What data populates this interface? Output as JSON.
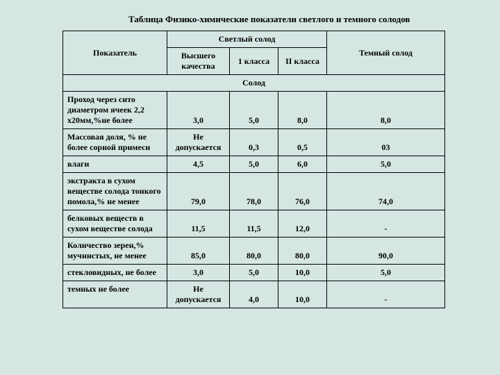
{
  "title": "Таблица Физико-химические показатели светлого и темного солодов",
  "headers": {
    "parameter": "Показатель",
    "light": "Светлый солод",
    "dark": "Темный солод",
    "sub1": "Высшего качества",
    "sub2": "1 класса",
    "sub3": "II класса"
  },
  "section": "Солод",
  "rows": [
    {
      "p": "Проход через сито диаметром ячеек 2,2 х20мм,%не более",
      "v1": "3,0",
      "v2": "5,0",
      "v3": "8,0",
      "v4": "8,0"
    },
    {
      "p": "Массовая доля, % не более\nсорной примеси",
      "v1": "Не допускается",
      "v2": "0,3",
      "v3": "0,5",
      "v4": "03"
    },
    {
      "p": "влаги",
      "v1": "4,5",
      "v2": "5,0",
      "v3": "6,0",
      "v4": "5,0"
    },
    {
      "p": "экстракта в сухом веществе солода тонкого помола,% не менее",
      "v1": "79,0",
      "v2": "78,0",
      "v3": "76,0",
      "v4": "74,0"
    },
    {
      "p": "белковых веществ в сухом веществе солода",
      "v1": "11,5",
      "v2": "11,5",
      "v3": "12,0",
      "v4": "-"
    },
    {
      "p": "Количество зерен,% мучнистых, не менее",
      "v1": "85,0",
      "v2": "80,0",
      "v3": "80,0",
      "v4": "90,0"
    },
    {
      "p": "стекловидных, не более",
      "v1": "3,0",
      "v2": "5,0",
      "v3": "10,0",
      "v4": "5,0"
    },
    {
      "p": "темных не более",
      "v1": "Не допускается",
      "v2": "4,0",
      "v3": "10,0",
      "v4": "-"
    }
  ]
}
